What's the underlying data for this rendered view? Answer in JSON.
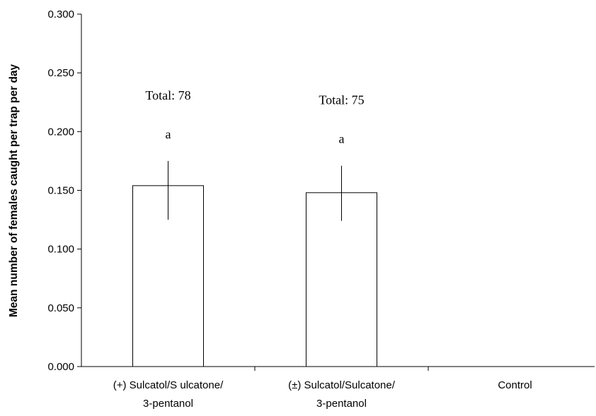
{
  "chart_data": {
    "type": "bar",
    "ylabel": "Mean number of females caught per trap per day",
    "xlabel": "",
    "ylim": [
      0,
      0.3
    ],
    "yticks": [
      "0.000",
      "0.050",
      "0.100",
      "0.150",
      "0.200",
      "0.250",
      "0.300"
    ],
    "categories": [
      [
        "(+) Sulcatol/S ulcatone/",
        "3-pentanol"
      ],
      [
        "(±) Sulcatol/Sulcatone/",
        "3-pentanol"
      ],
      [
        "Control"
      ]
    ],
    "values": [
      0.154,
      0.148,
      0
    ],
    "error_low": [
      0.125,
      0.124,
      null
    ],
    "error_high": [
      0.175,
      0.171,
      null
    ],
    "totals": [
      "Total: 78",
      "Total: 75",
      null
    ],
    "letters": [
      "a",
      "a",
      null
    ],
    "grid": false,
    "bar_fill": "#ffffff",
    "bar_stroke": "#000000"
  }
}
